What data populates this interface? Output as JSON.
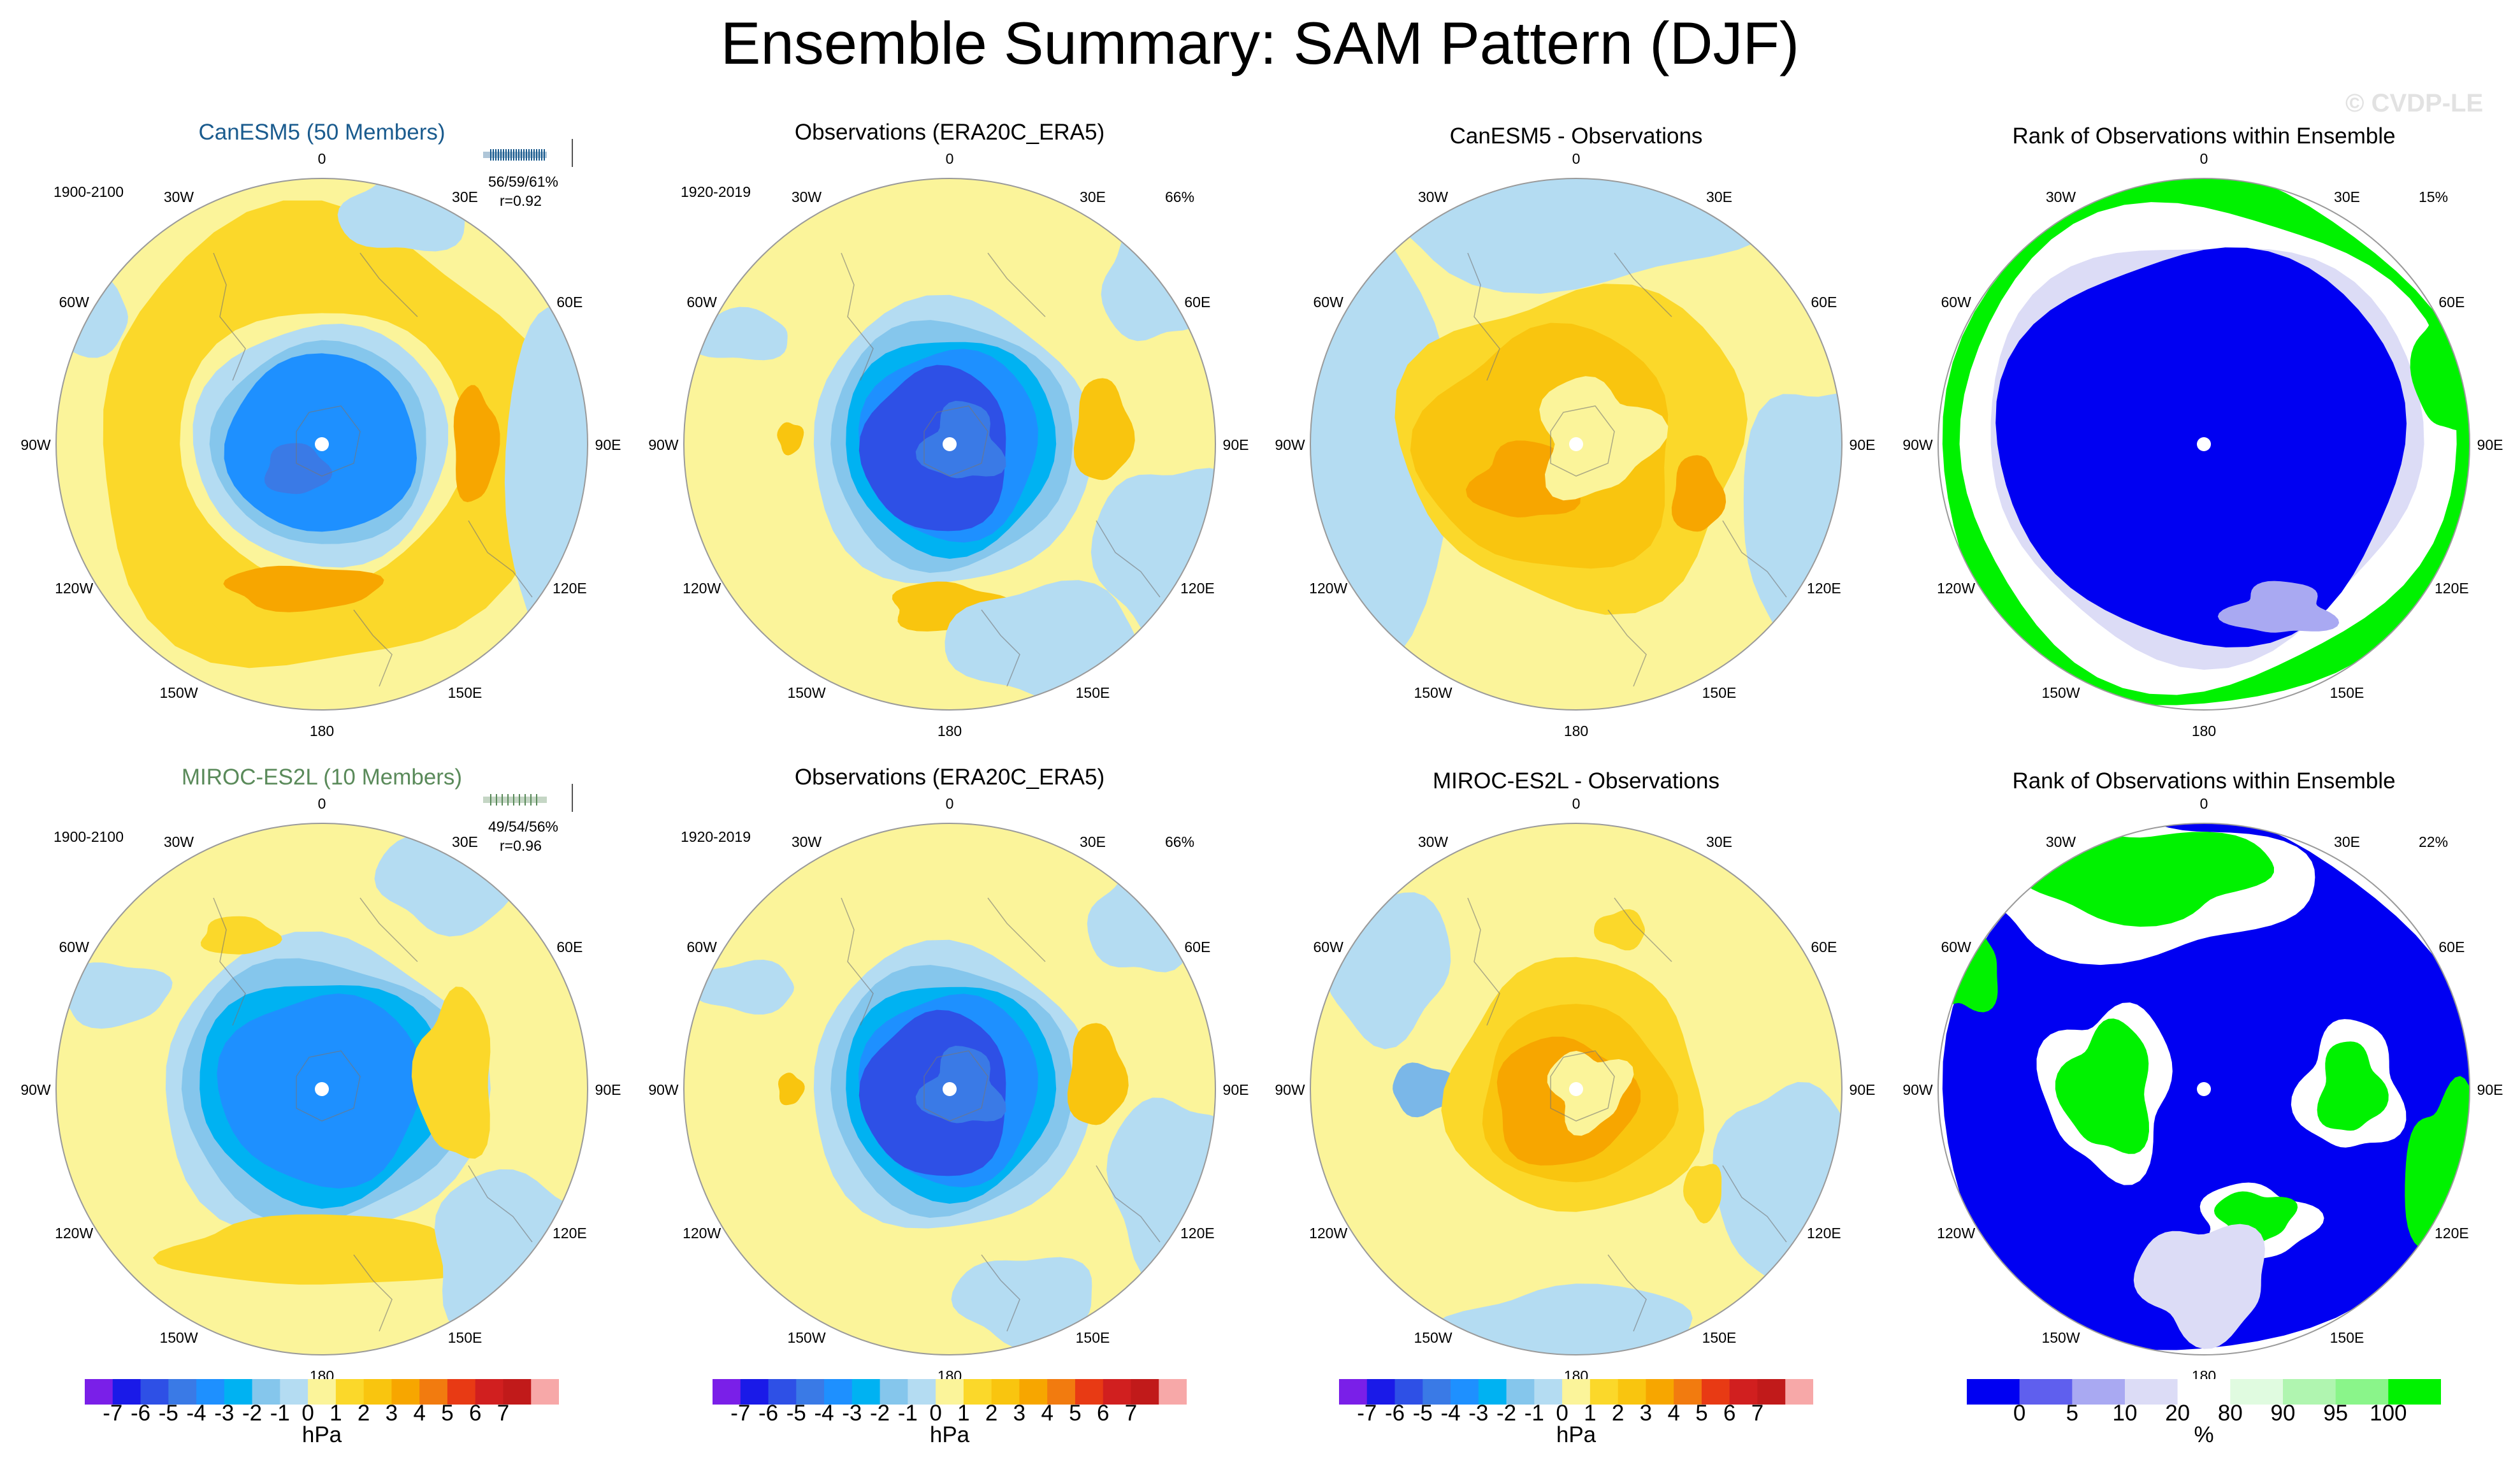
{
  "title": "Ensemble Summary: SAM Pattern (DJF)",
  "watermark": "© CVDP-LE",
  "colors": {
    "ocean": "#b4dcf2",
    "land": "#fbf49a",
    "neg": [
      "#7a1fe8",
      "#1a1ae8",
      "#2e50e6",
      "#3a7ae6",
      "#1e90ff",
      "#00b2f2",
      "#85c6ec",
      "#b4dcf2"
    ],
    "pos": [
      "#fbf49a",
      "#fbd82a",
      "#f9c50f",
      "#f7a600",
      "#f27b0f",
      "#e83a14",
      "#d11f1f",
      "#c11a1a",
      "#f7a8a8"
    ],
    "rank": [
      "#0000f2",
      "#5f5fee",
      "#a9a9f2",
      "#dcdcf6",
      "#ffffff",
      "#e0fbe0",
      "#b0f5b0",
      "#8af58a",
      "#00f200"
    ]
  },
  "longitude_labels": [
    "0",
    "30E",
    "60E",
    "90E",
    "120E",
    "150E",
    "180",
    "150W",
    "120W",
    "90W",
    "60W",
    "30W"
  ],
  "rows": [
    {
      "model_title": "CanESM5 (50 Members)",
      "model_title_color": "#1a5b8e",
      "period_model": "1900-2100",
      "stat_pct": "56/59/61%",
      "stat_r": "r=0.92",
      "obs_title": "Observations (ERA20C_ERA5)",
      "period_obs": "1920-2019",
      "obs_pct": "66%",
      "diff_title": "CanESM5 - Observations",
      "rank_title": "Rank of Observations within Ensemble",
      "rank_pct": "15%"
    },
    {
      "model_title": "MIROC-ES2L (10 Members)",
      "model_title_color": "#5a8a5a",
      "period_model": "1900-2100",
      "stat_pct": "49/54/56%",
      "stat_r": "r=0.96",
      "obs_title": "Observations (ERA20C_ERA5)",
      "period_obs": "1920-2019",
      "obs_pct": "66%",
      "diff_title": "MIROC-ES2L - Observations",
      "rank_title": "Rank of Observations within Ensemble",
      "rank_pct": "22%"
    }
  ],
  "chart_data": {
    "type": "heatmap",
    "projection": "south-polar-stereographic",
    "panels": [
      {
        "row": 0,
        "col": 0,
        "name": "CanESM5 (50 Members)",
        "min_hpa": -5,
        "max_hpa": 3
      },
      {
        "row": 0,
        "col": 1,
        "name": "Observations (ERA20C_ERA5)",
        "min_hpa": -6,
        "max_hpa": 2
      },
      {
        "row": 0,
        "col": 2,
        "name": "CanESM5 - Observations",
        "min_hpa": -1,
        "max_hpa": 3
      },
      {
        "row": 0,
        "col": 3,
        "name": "Rank of Observations within Ensemble",
        "unit": "%"
      },
      {
        "row": 1,
        "col": 0,
        "name": "MIROC-ES2L (10 Members)",
        "min_hpa": -4,
        "max_hpa": 2
      },
      {
        "row": 1,
        "col": 1,
        "name": "Observations (ERA20C_ERA5)",
        "min_hpa": -6,
        "max_hpa": 2
      },
      {
        "row": 1,
        "col": 2,
        "name": "MIROC-ES2L - Observations",
        "min_hpa": -2,
        "max_hpa": 3
      },
      {
        "row": 1,
        "col": 3,
        "name": "Rank of Observations within Ensemble",
        "unit": "%"
      }
    ],
    "colorbar_hpa": {
      "ticks": [
        "-7",
        "-6",
        "-5",
        "-4",
        "-3",
        "-2",
        "-1",
        "0",
        "1",
        "2",
        "3",
        "4",
        "5",
        "6",
        "7"
      ],
      "unit": "hPa"
    },
    "colorbar_rank": {
      "ticks": [
        "0",
        "5",
        "10",
        "20",
        "80",
        "90",
        "95",
        "100"
      ],
      "unit": "%"
    }
  }
}
